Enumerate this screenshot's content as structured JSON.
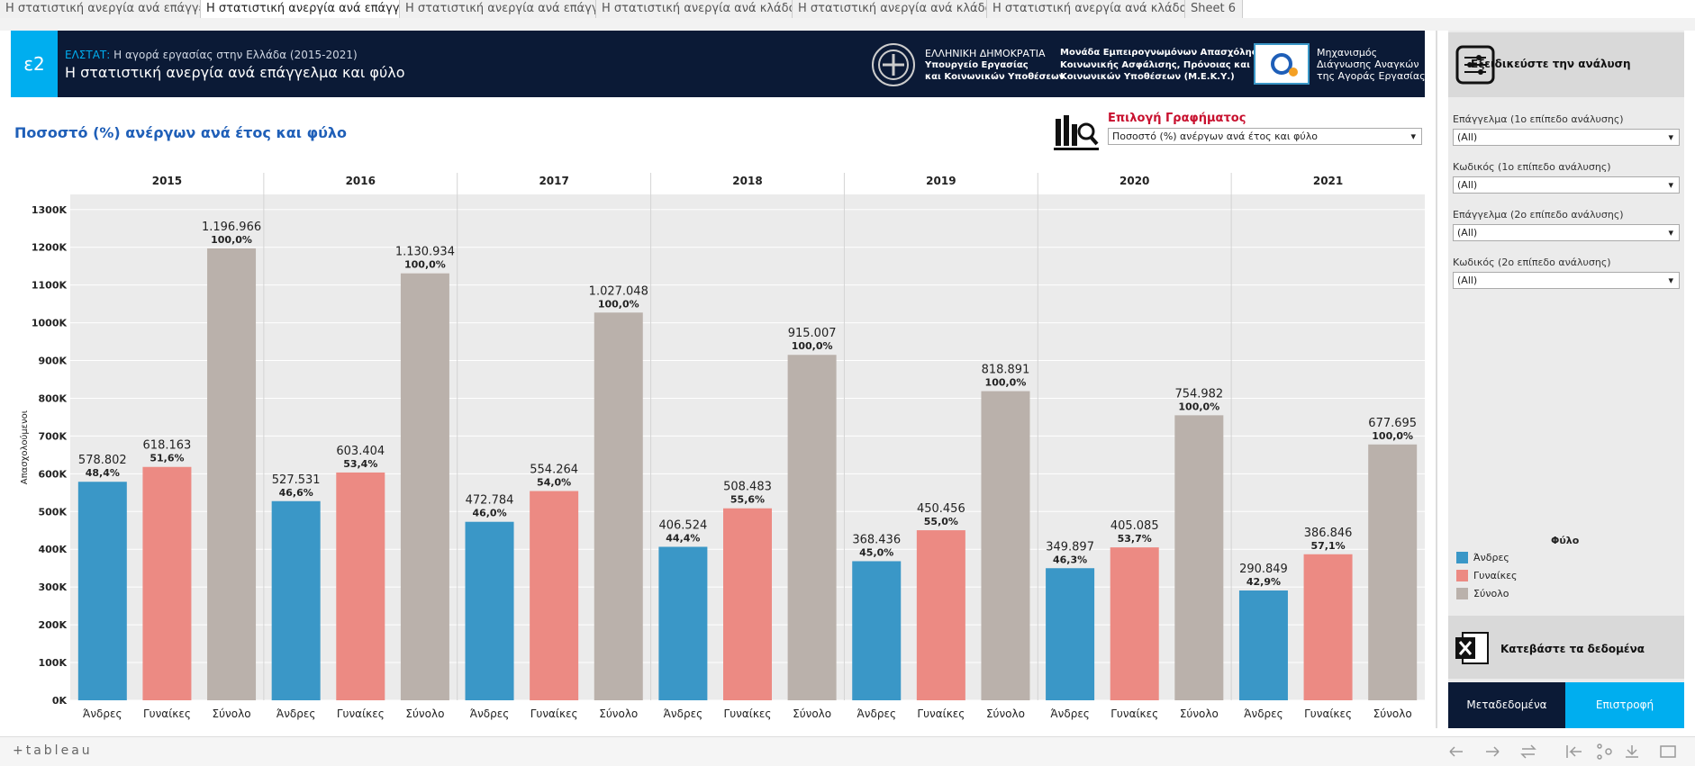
{
  "tabs": [
    "Η στατιστική ανεργία ανά επάγγε...",
    "Η στατιστική ανεργία ανά επάγγε...",
    "Η στατιστική ανεργία ανά επάγγε...",
    "Η στατιστική ανεργία ανά κλάδο ...",
    "Η στατιστική ανεργία ανά κλάδο ...",
    "Η στατιστική ανεργία ανά κλάδο ...",
    "Sheet 6"
  ],
  "header": {
    "badge": "ε2",
    "source_label": "ΕΛΣΤΑΤ:",
    "subtitle": "Η αγορά εργασίας στην Ελλάδα (2015-2021)",
    "title": "Η στατιστική ανεργία ανά επάγγελμα και φύλο",
    "logo1": [
      "ΕΛΛΗΝΙΚΗ ΔΗΜΟΚΡΑΤΙΑ",
      "Υπουργείο Εργασίας",
      "και Κοινωνικών Υποθέσεων"
    ],
    "logo2": [
      "Μονάδα Εμπειρογνωμόνων Απασχόλησης,",
      "Κοινωνικής Ασφάλισης, Πρόνοιας και",
      "Κοινωνικών Υποθέσεων (Μ.Ε.Κ.Υ.)"
    ],
    "logo3": [
      "Μηχανισμός",
      "Διάγνωσης Αναγκών",
      "της Αγοράς Εργασίας"
    ]
  },
  "selector": {
    "label": "Επιλογή Γραφήματος",
    "value": "Ποσοστό (%) ανέργων ανά έτος και φύλο"
  },
  "sidebar": {
    "heading": "Εξειδικεύστε την ανάλυση",
    "filters": [
      {
        "label": "Επάγγελμα (1ο επίπεδο ανάλυσης)",
        "value": "(All)"
      },
      {
        "label": "Κωδικός (1ο επίπεδο ανάλυσης)",
        "value": "(All)"
      },
      {
        "label": "Επάγγελμα (2ο επίπεδο ανάλυσης)",
        "value": "(All)"
      },
      {
        "label": "Κωδικός (2ο επίπεδο ανάλυσης)",
        "value": "(All)"
      }
    ],
    "download": "Κατεβάστε τα δεδομένα",
    "buttons": [
      "Μεταδεδομένα",
      "Επιστροφή"
    ]
  },
  "footer": {
    "brand": "+tableau"
  },
  "chart_data": {
    "type": "bar",
    "title": "Ποσοστό (%) ανέργων ανά έτος και φύλο",
    "y_label": "Απασχολούμενοι",
    "legend_title": "Φύλο",
    "categories": [
      "2015",
      "2016",
      "2017",
      "2018",
      "2019",
      "2020",
      "2021"
    ],
    "series": [
      {
        "name": "Άνδρες",
        "color": "#3a97c7",
        "values": [
          578802,
          527531,
          472784,
          406524,
          368436,
          349897,
          290849
        ],
        "value_labels": [
          "578.802",
          "527.531",
          "472.784",
          "406.524",
          "368.436",
          "349.897",
          "290.849"
        ],
        "shares": [
          48.4,
          46.6,
          46.0,
          44.4,
          45.0,
          46.3,
          42.9
        ],
        "share_labels": [
          "48,4%",
          "46,6%",
          "46,0%",
          "44,4%",
          "45,0%",
          "46,3%",
          "42,9%"
        ]
      },
      {
        "name": "Γυναίκες",
        "color": "#ec8a83",
        "values": [
          618163,
          603404,
          554264,
          508483,
          450456,
          405085,
          386846
        ],
        "value_labels": [
          "618.163",
          "603.404",
          "554.264",
          "508.483",
          "450.456",
          "405.085",
          "386.846"
        ],
        "shares": [
          51.6,
          53.4,
          54.0,
          55.6,
          55.0,
          53.7,
          57.1
        ],
        "share_labels": [
          "51,6%",
          "53,4%",
          "54,0%",
          "55,6%",
          "55,0%",
          "53,7%",
          "57,1%"
        ]
      },
      {
        "name": "Σύνολο",
        "color": "#bab1ab",
        "values": [
          1196966,
          1130934,
          1027048,
          915007,
          818891,
          754982,
          677695
        ],
        "value_labels": [
          "1.196.966",
          "1.130.934",
          "1.027.048",
          "915.007",
          "818.891",
          "754.982",
          "677.695"
        ],
        "shares": [
          100.0,
          100.0,
          100.0,
          100.0,
          100.0,
          100.0,
          100.0
        ],
        "share_labels": [
          "100,0%",
          "100,0%",
          "100,0%",
          "100,0%",
          "100,0%",
          "100,0%",
          "100,0%"
        ]
      }
    ],
    "ylim": [
      0,
      1340000
    ],
    "yticks": [
      {
        "value": 0,
        "label": "0K"
      },
      {
        "value": 100000,
        "label": "100K"
      },
      {
        "value": 200000,
        "label": "200K"
      },
      {
        "value": 300000,
        "label": "300K"
      },
      {
        "value": 400000,
        "label": "400K"
      },
      {
        "value": 500000,
        "label": "500K"
      },
      {
        "value": 600000,
        "label": "600K"
      },
      {
        "value": 700000,
        "label": "700K"
      },
      {
        "value": 800000,
        "label": "800K"
      },
      {
        "value": 900000,
        "label": "900K"
      },
      {
        "value": 1000000,
        "label": "1000K"
      },
      {
        "value": 1100000,
        "label": "1100K"
      },
      {
        "value": 1200000,
        "label": "1200K"
      },
      {
        "value": 1300000,
        "label": "1300K"
      }
    ],
    "grid": true
  }
}
